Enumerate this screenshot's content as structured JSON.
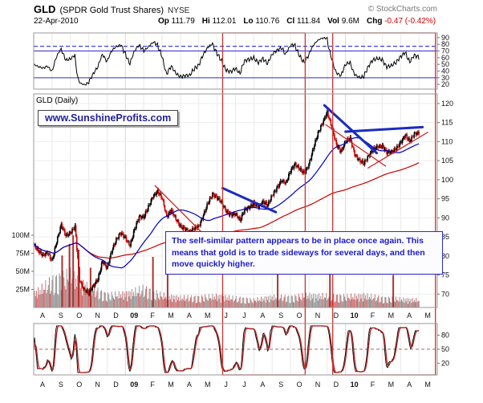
{
  "header": {
    "symbol": "GLD",
    "name": "(SPDR Gold Trust Shares)",
    "exchange": "NYSE",
    "copyright": "© StockCharts.com",
    "date": "22-Apr-2010",
    "quote": {
      "op_l": "Op",
      "op_v": "111.79",
      "hi_l": "Hi",
      "hi_v": "112.01",
      "lo_l": "Lo",
      "lo_v": "110.76",
      "cl_l": "Cl",
      "cl_v": "111.84",
      "vol_l": "Vol",
      "vol_v": "9.6M",
      "chg_l": "Chg",
      "chg_v": "-0.47 (-0.42%)"
    }
  },
  "main_panel": {
    "label": "GLD (Daily)",
    "watermark": "www.SunshineProfits.com",
    "annotation": "The self-similar pattern appears to be in place once again. This means that gold is to trade sideways for several days, and then move quickly higher."
  },
  "chart_data": {
    "type": "candlestick",
    "title": "GLD (SPDR Gold Trust Shares) NYSE - Daily",
    "timeframe": {
      "start": "Aug-2008",
      "end": "May-2010",
      "x_labels": [
        "A",
        "S",
        "O",
        "N",
        "D",
        "09",
        "F",
        "M",
        "A",
        "M",
        "J",
        "J",
        "A",
        "S",
        "O",
        "N",
        "D",
        "10",
        "F",
        "M",
        "A",
        "M"
      ],
      "bold_labels": [
        "09",
        "10"
      ]
    },
    "colors": {
      "up": "#000000",
      "down": "#cc0000",
      "ma_fast": "#0000bb",
      "ma_slow": "#cc0000",
      "guide_blue": "#2b2bcc",
      "box_red": "#cc3333",
      "trend_blue": "#1b2bc0",
      "trend_red": "#cc2222"
    },
    "panels": {
      "rsi": {
        "indicator": "momentum oscillator (RSI-style), black line",
        "axis": [
          90,
          80,
          70,
          60,
          50,
          40,
          30,
          20
        ],
        "solid_guides": [
          70,
          30
        ],
        "dashed_guide": 77
      },
      "price": {
        "label": "GLD (Daily)",
        "axis": [
          120,
          115,
          110,
          105,
          100,
          95,
          90,
          85,
          80,
          75,
          70
        ],
        "anchors_per_month": 4,
        "close_anchors": [
          83,
          81,
          80,
          81,
          79,
          84,
          88,
          85,
          86,
          88,
          74,
          71,
          70,
          72,
          74,
          79,
          77,
          81,
          84,
          86,
          85,
          83,
          87,
          90,
          90,
          93,
          96,
          97,
          95,
          90,
          92,
          90,
          88,
          87,
          86,
          87,
          88,
          91,
          94,
          96,
          95,
          94,
          92,
          91,
          91,
          89,
          92,
          93,
          94,
          93,
          94,
          93,
          96,
          98,
          100,
          99,
          102,
          104,
          103,
          102,
          104,
          108,
          112,
          115,
          118,
          114,
          109,
          107,
          110,
          111,
          107,
          105,
          104,
          106,
          108,
          109,
          109,
          107,
          107,
          108,
          110,
          112,
          110,
          111.8,
          112
        ],
        "ma_fast_period": 50,
        "ma_slow_period": 200
      },
      "volume": {
        "axis_labels": [
          "100M",
          "75M",
          "50M",
          "25M"
        ],
        "axis_values": [
          100,
          75,
          50,
          25
        ],
        "monthly_avg_millions": [
          18,
          34,
          42,
          26,
          16,
          18,
          24,
          16,
          13,
          13,
          15,
          12,
          10,
          14,
          13,
          16,
          15,
          14,
          16,
          12,
          11,
          10
        ],
        "spikes": [
          {
            "m": 1.55,
            "v": 72
          },
          {
            "m": 1.95,
            "v": 88
          },
          {
            "m": 2.15,
            "v": 100
          },
          {
            "m": 2.45,
            "v": 80
          },
          {
            "m": 3.1,
            "v": 55
          },
          {
            "m": 6.5,
            "v": 70
          },
          {
            "m": 7.3,
            "v": 52
          },
          {
            "m": 13.3,
            "v": 58
          },
          {
            "m": 16.15,
            "v": 52
          },
          {
            "m": 19.6,
            "v": 45
          }
        ]
      },
      "stoch": {
        "indicator": "stochastic-style oscillator, black %K with red %D",
        "axis": [
          80,
          50,
          20
        ],
        "dashed_guide": 50
      }
    },
    "overlays": {
      "red_boxes": [
        {
          "m0": 10.3,
          "m1": 14.8
        },
        {
          "m0": 16.3,
          "m1": 21.9
        }
      ],
      "blue_trendlines": [
        {
          "m0": 10.3,
          "v0": 97.8,
          "m1": 13.2,
          "v1": 91.5
        },
        {
          "m0": 15.85,
          "v0": 119.5,
          "m1": 18.7,
          "v1": 107.0
        },
        {
          "m0": 17.0,
          "v0": 112.6,
          "m1": 21.2,
          "v1": 113.8
        }
      ],
      "red_trendlines": [
        {
          "m0": 6.6,
          "v0": 98.5,
          "m1": 9.2,
          "v1": 86.0
        },
        {
          "m0": 15.9,
          "v0": 114.5,
          "m1": 19.2,
          "v1": 103.5
        },
        {
          "m0": 18.2,
          "v0": 103.0,
          "m1": 21.5,
          "v1": 112.5
        }
      ]
    }
  }
}
